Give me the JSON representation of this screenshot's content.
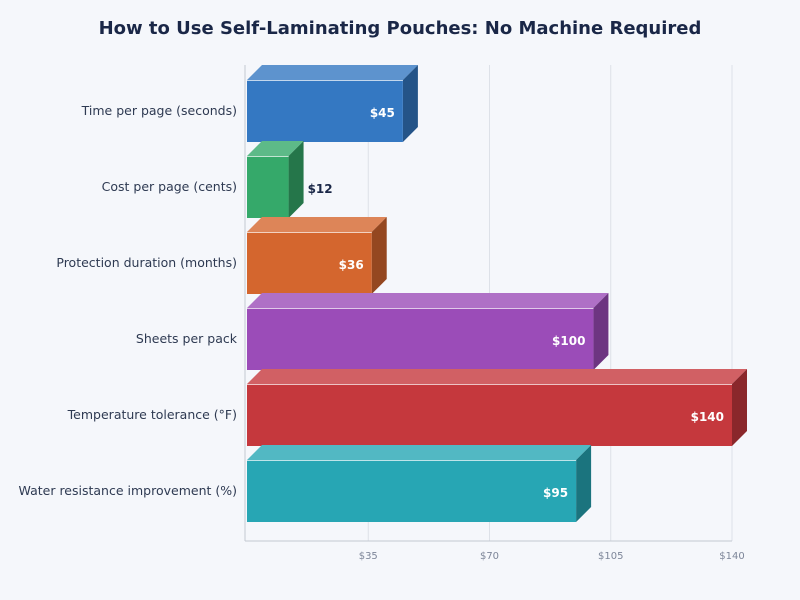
{
  "chart_data": {
    "type": "bar",
    "orientation": "horizontal",
    "style": "3d",
    "title": "How to Use Self-Laminating Pouches: No Machine Required",
    "categories": [
      "Time per page (seconds)",
      "Cost per page (cents)",
      "Protection duration (months)",
      "Sheets per pack",
      "Temperature tolerance (°F)",
      "Water resistance improvement (%)"
    ],
    "values": [
      45,
      12,
      36,
      100,
      140,
      95
    ],
    "value_labels": [
      "$45",
      "$12",
      "$36",
      "$100",
      "$140",
      "$95"
    ],
    "colors": [
      "#3478c2",
      "#35a96a",
      "#d4662e",
      "#9b4cb8",
      "#c5383d",
      "#27a6b4"
    ],
    "xlim": [
      0,
      140
    ],
    "xticks": [
      35,
      70,
      105,
      140
    ],
    "xtick_labels": [
      "$35",
      "$70",
      "$105",
      "$140"
    ],
    "grid": true,
    "xlabel": "",
    "ylabel": ""
  }
}
